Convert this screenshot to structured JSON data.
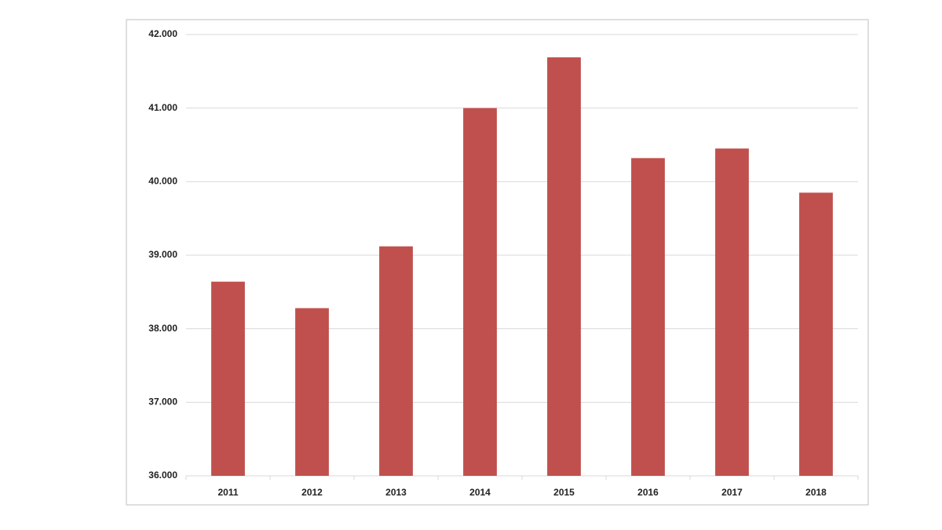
{
  "chart_data": {
    "type": "bar",
    "categories": [
      "2011",
      "2012",
      "2013",
      "2014",
      "2015",
      "2016",
      "2017",
      "2018"
    ],
    "values": [
      38640,
      38280,
      39120,
      41000,
      41690,
      40320,
      40450,
      39850
    ],
    "color": "#c0504d",
    "ylim": [
      36000,
      42000
    ],
    "yticks": [
      {
        "value": 36000,
        "label": "36.000"
      },
      {
        "value": 37000,
        "label": "37.000"
      },
      {
        "value": 38000,
        "label": "38.000"
      },
      {
        "value": 39000,
        "label": "39.000"
      },
      {
        "value": 40000,
        "label": "40.000"
      },
      {
        "value": 41000,
        "label": "41.000"
      },
      {
        "value": 42000,
        "label": "42.000"
      }
    ],
    "grid": true
  }
}
